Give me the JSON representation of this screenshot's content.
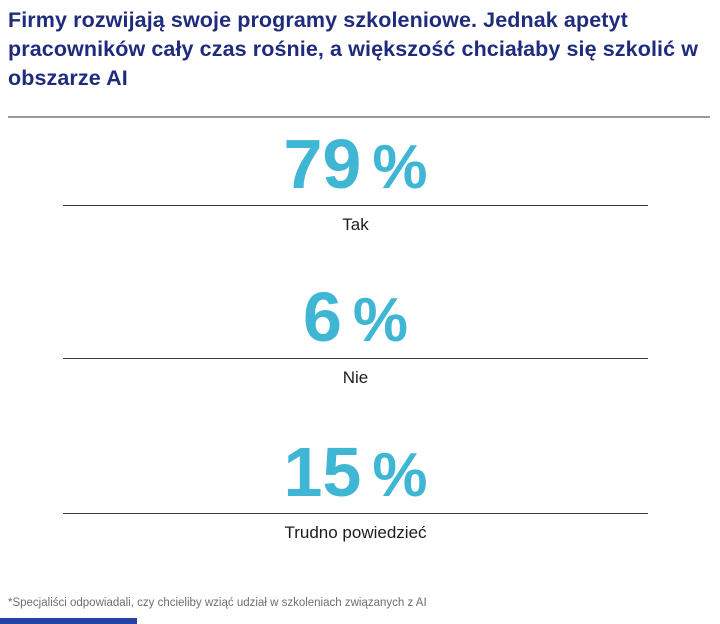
{
  "page": {
    "title": "Firmy rozwijają swoje programy szkoleniowe. Jednak apetyt pracowników cały czas rośnie, a większość chciałaby się szkolić w obszarze AI",
    "title_lines": [
      "Firmy rozwijają swoje programy szkoleniowe. Jednak apetyt",
      "pracowników cały czas rośnie, a większość chciałaby się szkolić w",
      "obszarze AI"
    ],
    "footnote": "*Specjaliści odpowiadali, czy chcieliby wziąć udział w szkoleniach związanych z AI"
  },
  "stats": [
    {
      "value": "79",
      "unit": "%",
      "label": "Tak"
    },
    {
      "value": "6",
      "unit": "%",
      "label": "Nie"
    },
    {
      "value": "15",
      "unit": "%",
      "label": "Trudno powiedzieć"
    }
  ],
  "colors": {
    "title_navy": "#1f2c7c",
    "accent_cyan": "#3fb6d4",
    "top_divider_gray": "#9a9a9a",
    "stat_line_dark": "#383838",
    "label_black": "#1c1c1c",
    "footnote_gray": "#6e6e6e",
    "bottom_bar_blue": "#2443a5"
  },
  "chart_data": {
    "type": "table",
    "title": "Firmy rozwijają swoje programy szkoleniowe. Jednak apetyt pracowników cały czas rośnie, a większość chciałaby się szkolić w obszarze AI",
    "categories": [
      "Tak",
      "Nie",
      "Trudno powiedzieć"
    ],
    "values": [
      79,
      6,
      15
    ],
    "unit": "%",
    "legend": false,
    "grid": false,
    "annotations": [
      "*Specjaliści odpowiadali, czy chcieliby wziąć udział w szkoleniach związanych z AI"
    ]
  }
}
